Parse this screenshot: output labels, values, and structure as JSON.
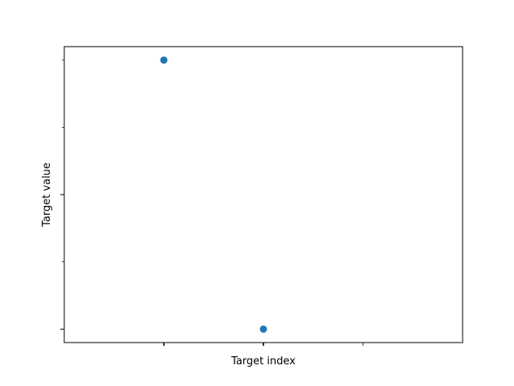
{
  "chart_data": {
    "type": "scatter",
    "title": "",
    "xlabel": "Target index",
    "ylabel": "Target value",
    "x": [
      0,
      1
    ],
    "y": [
      1,
      0
    ],
    "xlim": [
      -1,
      3
    ],
    "ylim": [
      -0.05,
      1.05
    ],
    "x_ticks": [
      0,
      1,
      2
    ],
    "y_major_ticks": [
      0,
      0.5
    ],
    "y_minor_ticks": [
      0.25,
      0.75,
      1.0
    ],
    "tick_labels_shown": false,
    "grid": false,
    "legend": "none",
    "marker_color": "#1f77b4"
  }
}
